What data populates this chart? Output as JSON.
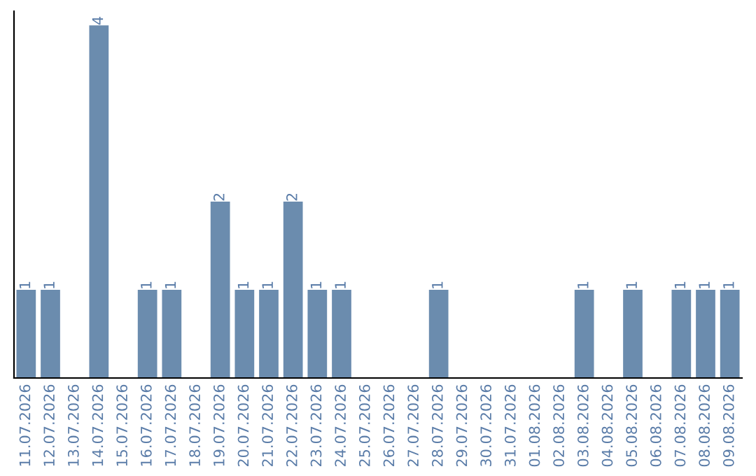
{
  "chart_data": {
    "type": "bar",
    "categories": [
      "11.07.2026",
      "12.07.2026",
      "13.07.2026",
      "14.07.2026",
      "15.07.2026",
      "16.07.2026",
      "17.07.2026",
      "18.07.2026",
      "19.07.2026",
      "20.07.2026",
      "21.07.2026",
      "22.07.2026",
      "23.07.2026",
      "24.07.2026",
      "25.07.2026",
      "26.07.2026",
      "27.07.2026",
      "28.07.2026",
      "29.07.2026",
      "30.07.2026",
      "31.07.2026",
      "01.08.2026",
      "02.08.2026",
      "03.08.2026",
      "04.08.2026",
      "05.08.2026",
      "06.08.2026",
      "07.08.2026",
      "08.08.2026",
      "09.08.2026"
    ],
    "values": [
      1,
      1,
      0,
      4,
      0,
      1,
      1,
      0,
      2,
      1,
      1,
      2,
      1,
      1,
      0,
      0,
      0,
      1,
      0,
      0,
      0,
      0,
      0,
      1,
      0,
      1,
      0,
      1,
      1,
      1
    ],
    "value_labels": [
      "1",
      "1",
      null,
      "4",
      null,
      "1",
      "1",
      null,
      "2",
      "1",
      "1",
      "2",
      "1",
      "1",
      null,
      null,
      null,
      "1",
      null,
      null,
      null,
      null,
      null,
      "1",
      null,
      "1",
      null,
      "1",
      "1",
      "1"
    ],
    "color": "#6b8cae",
    "tick_labels": "x",
    "grid": false,
    "legend": false
  }
}
